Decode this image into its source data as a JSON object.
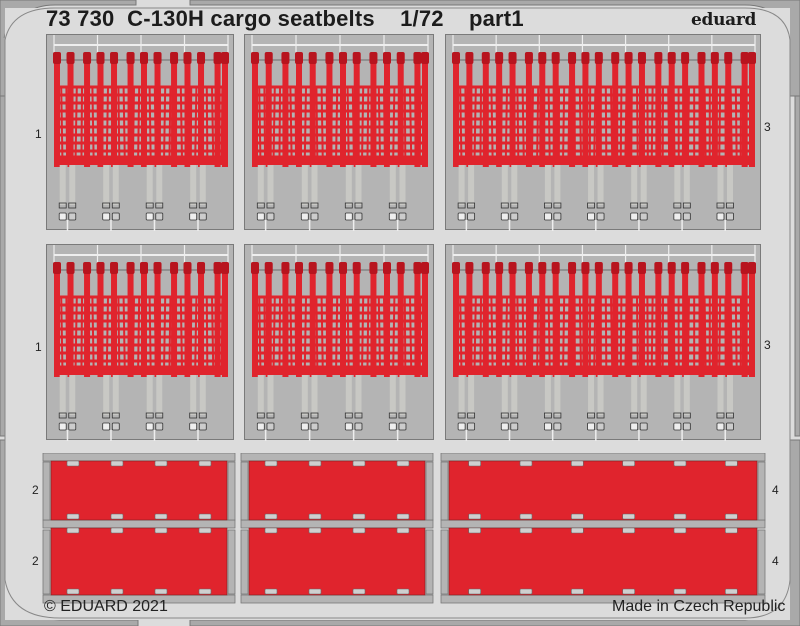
{
  "header": {
    "title": "73 730  C-130H cargo seatbelts    1/72    part1",
    "brand": "eduard"
  },
  "footer": {
    "copyright": "© EDUARD 2021",
    "origin": "Made in Czech Republic"
  },
  "part_labels": {
    "row1_left": "1",
    "row1_right": "3",
    "row2_left": "1",
    "row2_right": "3",
    "row3_left": "2",
    "row3_right": "4",
    "row4_left": "2",
    "row4_right": "4"
  },
  "colors": {
    "background": "#dcdcdc",
    "fret_gray": "#b4b4b4",
    "belt_red": "#e0242d",
    "outline": "#7a7a7a"
  },
  "belt_panels": [
    {
      "id": "seatbelt-panel-small-1",
      "part": "1",
      "belts": 12
    },
    {
      "id": "seatbelt-panel-small-2",
      "part": "1",
      "belts": 12
    },
    {
      "id": "seatbelt-panel-large-1",
      "part": "3",
      "belts": 18
    },
    {
      "id": "seatbelt-panel-small-3",
      "part": "1",
      "belts": 12
    },
    {
      "id": "seatbelt-panel-small-4",
      "part": "1",
      "belts": 12
    },
    {
      "id": "seatbelt-panel-large-2",
      "part": "3",
      "belts": 18
    }
  ],
  "pad_panels": [
    {
      "id": "pad-2-a",
      "part": "2"
    },
    {
      "id": "pad-2-b",
      "part": "2"
    },
    {
      "id": "pad-4-a",
      "part": "4"
    },
    {
      "id": "pad-4-b",
      "part": "4"
    }
  ]
}
